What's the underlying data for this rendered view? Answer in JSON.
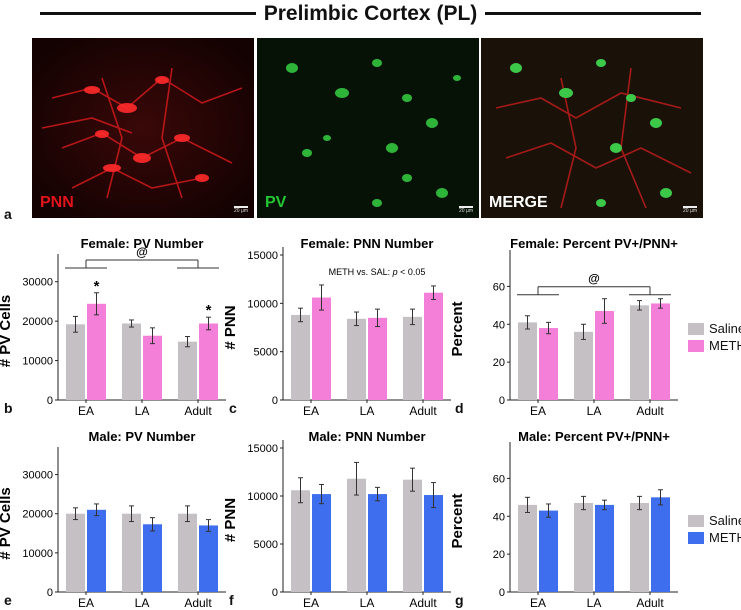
{
  "figure_title": "Prelimbic Cortex (PL)",
  "micrographs": [
    {
      "label": "PNN",
      "label_color": "#e0141a",
      "scale": "20 µm"
    },
    {
      "label": "PV",
      "label_color": "#22c832",
      "scale": "20 µm"
    },
    {
      "label": "MERGE",
      "label_color": "#ffffff",
      "scale": "20 µm"
    }
  ],
  "panel_letters": {
    "a": "a",
    "b": "b",
    "c": "c",
    "d": "d",
    "e": "e",
    "f": "f",
    "g": "g"
  },
  "legend_female": {
    "items": [
      {
        "name": "Saline",
        "color": "#c5c0c4"
      },
      {
        "name": "METH",
        "color": "#f47fd8"
      }
    ]
  },
  "legend_male": {
    "items": [
      {
        "name": "Saline",
        "color": "#c5c0c4"
      },
      {
        "name": "METH",
        "color": "#3e6ded"
      }
    ]
  },
  "chart_data": [
    {
      "type": "bar",
      "id": "b",
      "title": "Female: PV Number",
      "xlabel": "",
      "ylabel": "# PV Cells",
      "categories": [
        "EA",
        "LA",
        "Adult"
      ],
      "ylim": [
        0,
        35000
      ],
      "yticks": [
        0,
        10000,
        20000,
        30000
      ],
      "colors": [
        "#c5c0c4",
        "#f47fd8"
      ],
      "series": [
        {
          "name": "Saline",
          "values": [
            19200,
            19400,
            14800
          ],
          "errors": [
            2000,
            900,
            1300
          ]
        },
        {
          "name": "METH",
          "values": [
            24400,
            16300,
            19400
          ],
          "errors": [
            2800,
            2000,
            1600
          ]
        }
      ],
      "stars": [
        {
          "category": 0,
          "series": 1,
          "text": "*"
        },
        {
          "category": 2,
          "series": 1,
          "text": "*"
        }
      ],
      "bracket": {
        "text": "@",
        "from": 0,
        "to": 2
      }
    },
    {
      "type": "bar",
      "id": "c",
      "title": "Female: PNN Number",
      "xlabel": "",
      "ylabel": "# PNN",
      "categories": [
        "EA",
        "LA",
        "Adult"
      ],
      "ylim": [
        0,
        15000
      ],
      "yticks": [
        0,
        5000,
        10000,
        15000
      ],
      "colors": [
        "#c5c0c4",
        "#f47fd8"
      ],
      "series": [
        {
          "name": "Saline",
          "values": [
            8800,
            8400,
            8600
          ],
          "errors": [
            700,
            700,
            800
          ]
        },
        {
          "name": "METH",
          "values": [
            10600,
            8500,
            11100
          ],
          "errors": [
            1300,
            900,
            700
          ]
        }
      ],
      "annotation": {
        "prefix": "METH vs. SAL:  ",
        "italic": "p",
        "suffix": " < 0.05"
      }
    },
    {
      "type": "bar",
      "id": "d",
      "title": "Female: Percent PV+/PNN+",
      "xlabel": "",
      "ylabel": "Percent",
      "categories": [
        "EA",
        "LA",
        "Adult"
      ],
      "ylim": [
        0,
        75
      ],
      "yticks": [
        0,
        20,
        40,
        60
      ],
      "colors": [
        "#c5c0c4",
        "#f47fd8"
      ],
      "series": [
        {
          "name": "Saline",
          "values": [
            41,
            36,
            50
          ],
          "errors": [
            3.5,
            4,
            2.5
          ]
        },
        {
          "name": "METH",
          "values": [
            38,
            47,
            51
          ],
          "errors": [
            3,
            6.5,
            2.5
          ]
        }
      ],
      "bracket": {
        "text": "@",
        "from": 0,
        "to": 2
      }
    },
    {
      "type": "bar",
      "id": "e",
      "title": "Male: PV Number",
      "xlabel": "",
      "ylabel": "# PV Cells",
      "categories": [
        "EA",
        "LA",
        "Adult"
      ],
      "ylim": [
        0,
        35000
      ],
      "yticks": [
        0,
        10000,
        20000,
        30000
      ],
      "colors": [
        "#c5c0c4",
        "#3e6ded"
      ],
      "series": [
        {
          "name": "Saline",
          "values": [
            20000,
            20000,
            20000
          ],
          "errors": [
            1500,
            2000,
            2000
          ]
        },
        {
          "name": "METH",
          "values": [
            21000,
            17300,
            17000
          ],
          "errors": [
            1500,
            1700,
            1500
          ]
        }
      ]
    },
    {
      "type": "bar",
      "id": "f",
      "title": "Male: PNN Number",
      "xlabel": "",
      "ylabel": "# PNN",
      "categories": [
        "EA",
        "LA",
        "Adult"
      ],
      "ylim": [
        0,
        15000
      ],
      "yticks": [
        0,
        5000,
        10000,
        15000
      ],
      "colors": [
        "#c5c0c4",
        "#3e6ded"
      ],
      "series": [
        {
          "name": "Saline",
          "values": [
            10600,
            11800,
            11700
          ],
          "errors": [
            1300,
            1700,
            1200
          ]
        },
        {
          "name": "METH",
          "values": [
            10200,
            10200,
            10100
          ],
          "errors": [
            1000,
            700,
            1300
          ]
        }
      ]
    },
    {
      "type": "bar",
      "id": "g",
      "title": "Male: Percent PV+/PNN+",
      "xlabel": "",
      "ylabel": "Percent",
      "categories": [
        "EA",
        "LA",
        "Adult"
      ],
      "ylim": [
        0,
        75
      ],
      "yticks": [
        0,
        20,
        40,
        60
      ],
      "colors": [
        "#c5c0c4",
        "#3e6ded"
      ],
      "series": [
        {
          "name": "Saline",
          "values": [
            46,
            47,
            47
          ],
          "errors": [
            4,
            3.5,
            3.5
          ]
        },
        {
          "name": "METH",
          "values": [
            43,
            46,
            50
          ],
          "errors": [
            3.5,
            2.5,
            4
          ]
        }
      ]
    }
  ]
}
